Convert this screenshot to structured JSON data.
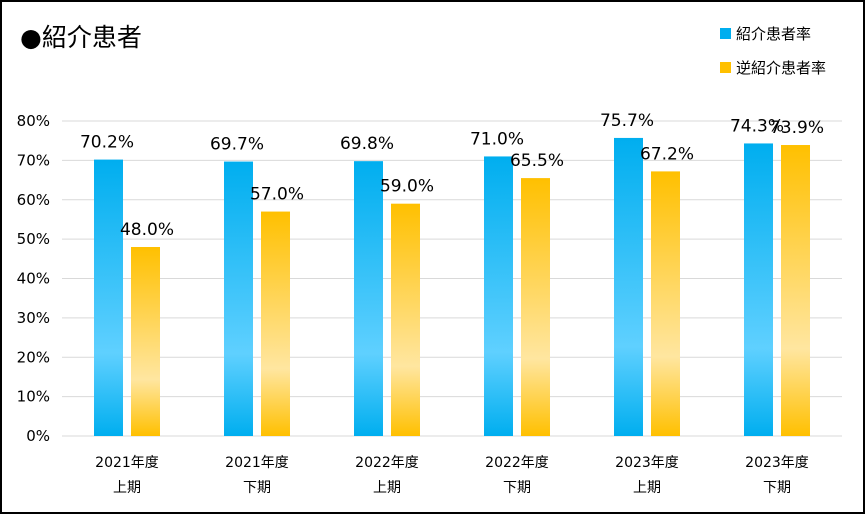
{
  "title": "●紹介患者",
  "colors": {
    "series1_edge": "#00aeef",
    "series1_light": "#5fd0ff",
    "series2_edge": "#ffc000",
    "series2_light": "#ffe6a0",
    "grid": "#d9d9d9",
    "border": "#000000"
  },
  "chart_data": {
    "type": "bar",
    "title": "●紹介患者",
    "categories": [
      [
        "2021年度",
        "上期"
      ],
      [
        "2021年度",
        "下期"
      ],
      [
        "2022年度",
        "上期"
      ],
      [
        "2022年度",
        "下期"
      ],
      [
        "2023年度",
        "上期"
      ],
      [
        "2023年度",
        "下期"
      ]
    ],
    "series": [
      {
        "name": "紹介患者率",
        "values": [
          70.2,
          69.7,
          69.8,
          71.0,
          75.7,
          74.3
        ],
        "labels": [
          "70.2%",
          "69.7%",
          "69.8%",
          "71.0%",
          "75.7%",
          "74.3%"
        ]
      },
      {
        "name": "逆紹介患者率",
        "values": [
          48.0,
          57.0,
          59.0,
          65.5,
          67.2,
          73.9
        ],
        "labels": [
          "48.0%",
          "57.0%",
          "59.0%",
          "65.5%",
          "67.2%",
          "73.9%"
        ]
      }
    ],
    "y_ticks": [
      "0%",
      "10%",
      "20%",
      "30%",
      "40%",
      "50%",
      "60%",
      "70%",
      "80%"
    ],
    "ylim": [
      0,
      80
    ],
    "grid": true,
    "legend": "top-right"
  }
}
